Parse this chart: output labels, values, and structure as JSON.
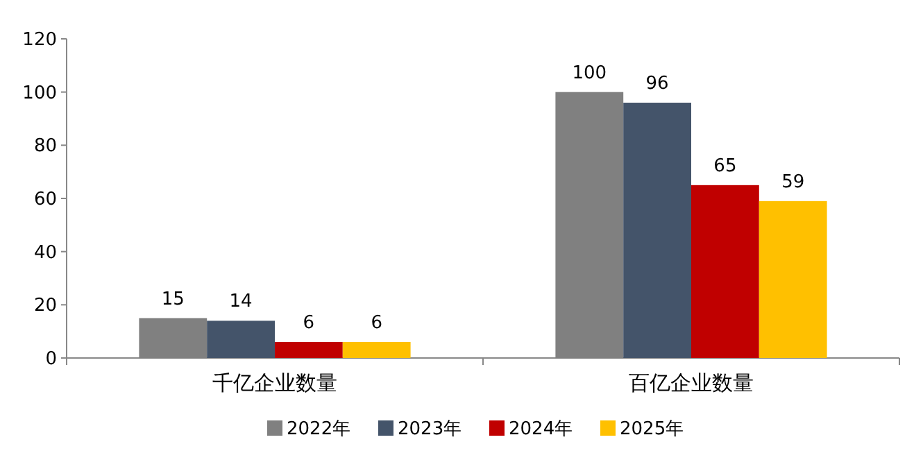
{
  "chart_data": {
    "type": "bar",
    "categories": [
      "千亿企业数量",
      "百亿企业数量"
    ],
    "series": [
      {
        "name": "2022年",
        "color": "#808080",
        "values": [
          15,
          100
        ]
      },
      {
        "name": "2023年",
        "color": "#44546a",
        "values": [
          14,
          96
        ]
      },
      {
        "name": "2024年",
        "color": "#c00000",
        "values": [
          6,
          65
        ]
      },
      {
        "name": "2025年",
        "color": "#ffc000",
        "values": [
          6,
          59
        ]
      }
    ],
    "ylim": [
      0,
      120
    ],
    "yticks": [
      0,
      20,
      40,
      60,
      80,
      100,
      120
    ],
    "data_labels": true,
    "legend": "bottom",
    "grid": false
  }
}
